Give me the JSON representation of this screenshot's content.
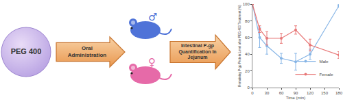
{
  "diagram": {
    "source": {
      "label": "PEG 400"
    },
    "step1": {
      "label": [
        "Oral",
        "Administration"
      ]
    },
    "subjects": [
      {
        "symbol": "♂",
        "color": "#4f73d8"
      },
      {
        "symbol": "♀",
        "color": "#e66aa8"
      }
    ],
    "step2": {
      "label": [
        "Intestinal P-gp",
        "Quantification In",
        "Jejunum"
      ]
    }
  },
  "chart_data": {
    "type": "line",
    "x_label": "Time (min)",
    "y_label": "Remaining P-gp Protein Level after PEG 400 Treatment (%)",
    "x": [
      0,
      15,
      30,
      60,
      90,
      120,
      180
    ],
    "series": [
      {
        "name": "Male",
        "color": "#86b5e6",
        "values": [
          100,
          60,
          50,
          35,
          31,
          40,
          98
        ],
        "errors": [
          0,
          12,
          10,
          6,
          10,
          6,
          2
        ]
      },
      {
        "name": "Female",
        "color": "#e87878",
        "values": [
          100,
          70,
          59,
          59,
          69,
          51,
          39
        ],
        "errors": [
          0,
          4,
          8,
          6,
          5,
          7,
          4
        ]
      }
    ],
    "xlim": [
      0,
      180
    ],
    "xticks": [
      0,
      30,
      60,
      90,
      120,
      150,
      180
    ],
    "ylim": [
      0,
      100
    ],
    "yticks": [
      0,
      20,
      40,
      60,
      80,
      100
    ],
    "legend": "lower right",
    "grid": false
  }
}
